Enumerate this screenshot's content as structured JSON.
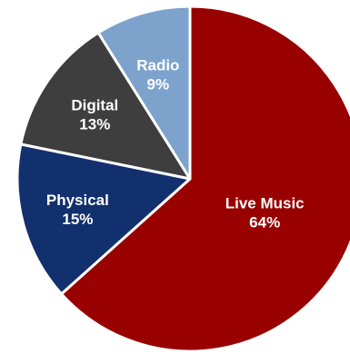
{
  "chart_data": {
    "type": "pie",
    "slices": [
      {
        "label": "Live Music",
        "value": 64,
        "value_label": "64%",
        "color": "#990000",
        "text_color": "#ffffff"
      },
      {
        "label": "Physical",
        "value": 15,
        "value_label": "15%",
        "color": "#13306e",
        "text_color": "#ffffff"
      },
      {
        "label": "Digital",
        "value": 13,
        "value_label": "13%",
        "color": "#3e3e3e",
        "text_color": "#ffffff"
      },
      {
        "label": "Radio",
        "value": 9,
        "value_label": "9%",
        "color": "#7da2cc",
        "text_color": "#ffffff"
      }
    ],
    "start_angle_deg": 0,
    "direction": "clockwise",
    "legend": "none"
  }
}
